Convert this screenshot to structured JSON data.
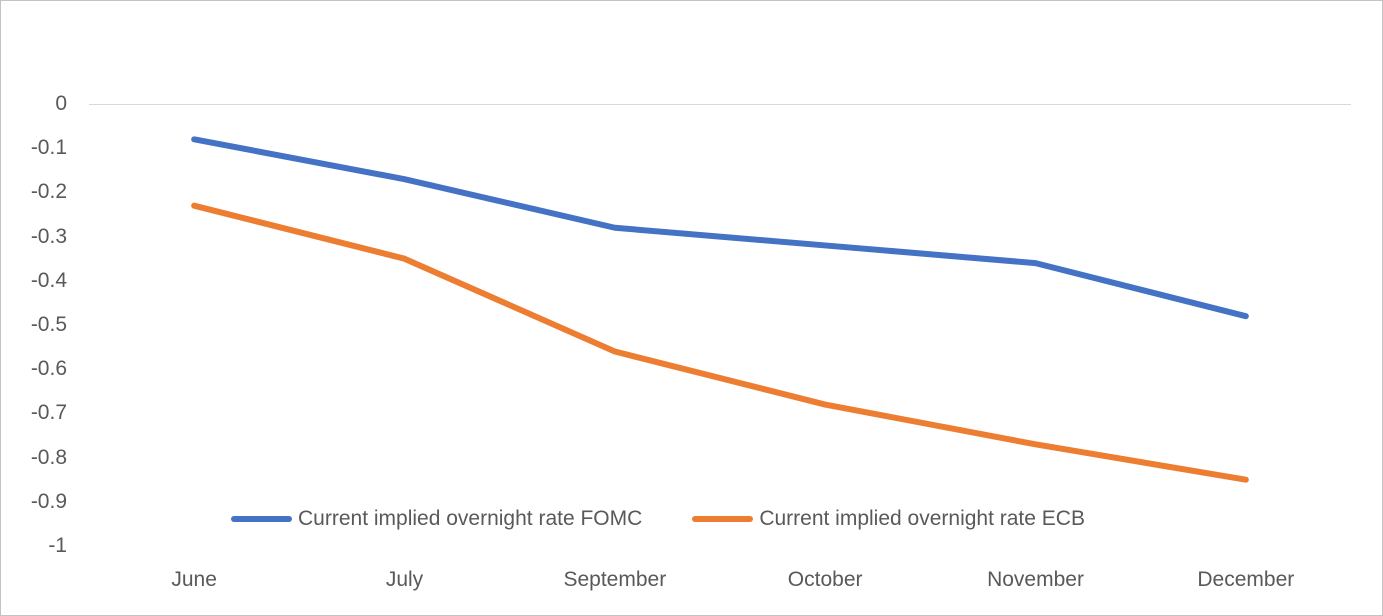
{
  "chart_data": {
    "type": "line",
    "title": "",
    "xlabel": "",
    "ylabel": "",
    "categories": [
      "June",
      "July",
      "September",
      "October",
      "November",
      "December"
    ],
    "series": [
      {
        "name": "Current implied overnight rate FOMC",
        "color": "#4472C4",
        "values": [
          -0.08,
          -0.17,
          -0.28,
          -0.32,
          -0.36,
          -0.48
        ]
      },
      {
        "name": "Current implied overnight rate ECB",
        "color": "#ED7D31",
        "values": [
          -0.23,
          -0.35,
          -0.56,
          -0.68,
          -0.77,
          -0.85
        ]
      }
    ],
    "ylim": [
      -1,
      0
    ],
    "yticks": [
      0,
      -0.1,
      -0.2,
      -0.3,
      -0.4,
      -0.5,
      -0.6,
      -0.7,
      -0.8,
      -0.9,
      -1
    ],
    "ytick_labels": [
      "0",
      "-0.1",
      "-0.2",
      "-0.3",
      "-0.4",
      "-0.5",
      "-0.6",
      "-0.7",
      "-0.8",
      "-0.9",
      "-1"
    ],
    "grid": "horizontal gridline at 0 only",
    "legend_position": "bottom-inside"
  },
  "style": {
    "gridline_color": "#D9D9D9",
    "axis_text_color": "#595959",
    "background_color": "#FFFFFF",
    "border_color": "#C3C3C3"
  }
}
